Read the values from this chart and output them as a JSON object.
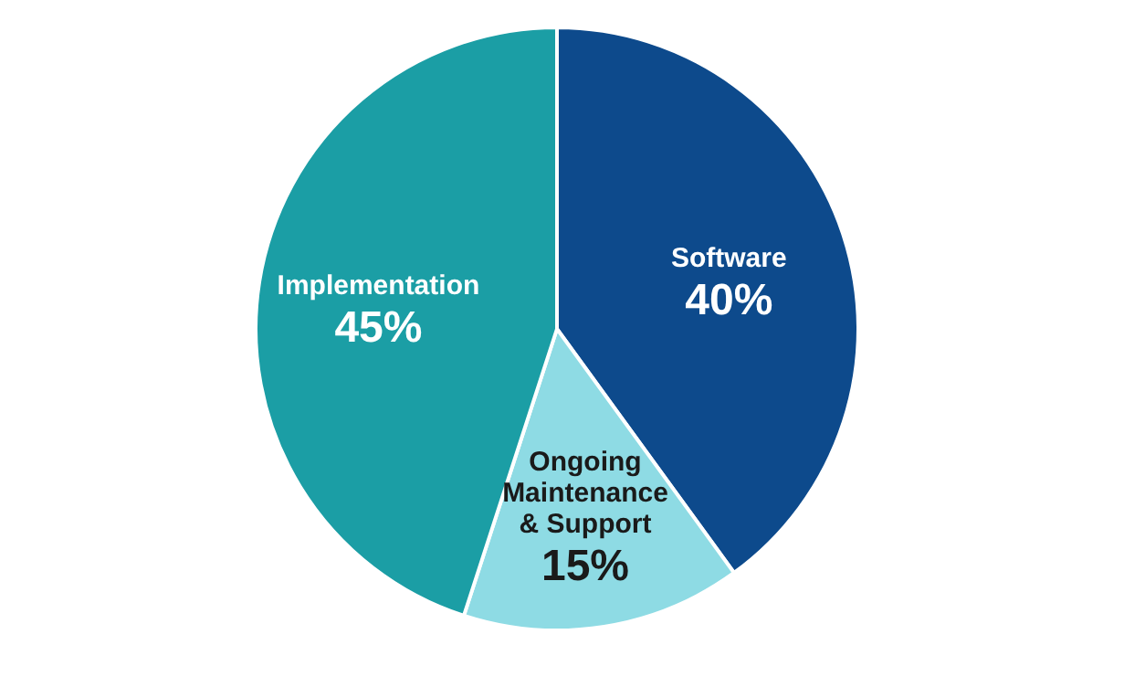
{
  "chart_data": {
    "type": "pie",
    "categories": [
      "Software",
      "Ongoing Maintenance & Support",
      "Implementation"
    ],
    "values": [
      40,
      15,
      45
    ],
    "colors": [
      "#0d4a8c",
      "#8edbe4",
      "#1b9ea5"
    ],
    "value_labels": [
      "40%",
      "15%",
      "45%"
    ],
    "legend": false
  }
}
